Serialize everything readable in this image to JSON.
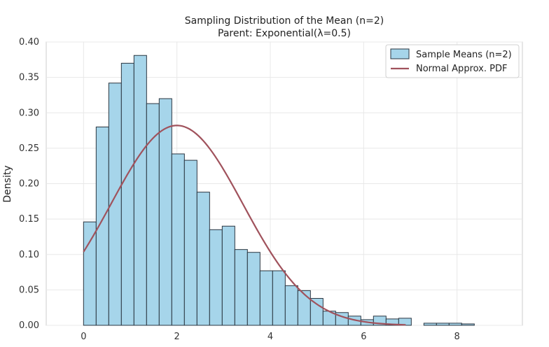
{
  "chart_data": {
    "type": "bar",
    "title": "Sampling Distribution of the Mean (n=2)",
    "subtitle": "Parent: Exponential(λ=0.5)",
    "xlabel": "",
    "ylabel": "Density",
    "xlim": [
      -0.8,
      9.4
    ],
    "ylim": [
      0,
      0.4
    ],
    "xticks": [
      0,
      2,
      4,
      6,
      8
    ],
    "yticks": [
      0.0,
      0.05,
      0.1,
      0.15,
      0.2,
      0.25,
      0.3,
      0.35,
      0.4
    ],
    "grid": true,
    "legend_position": "top-right",
    "series": [
      {
        "name": "Sample Means (n=2)",
        "kind": "histogram",
        "color": "#a6d5ea",
        "edge_color": "#2a3540",
        "bin_edges": [
          0.0,
          0.27,
          0.54,
          0.81,
          1.08,
          1.35,
          1.62,
          1.89,
          2.16,
          2.43,
          2.7,
          2.97,
          3.24,
          3.51,
          3.78,
          4.05,
          4.32,
          4.59,
          4.86,
          5.13,
          5.4,
          5.67,
          5.94,
          6.21,
          6.48,
          6.75,
          7.02,
          7.29,
          7.56,
          7.83,
          8.1,
          8.37
        ],
        "values": [
          0.146,
          0.28,
          0.342,
          0.37,
          0.381,
          0.313,
          0.32,
          0.242,
          0.233,
          0.188,
          0.135,
          0.14,
          0.107,
          0.103,
          0.077,
          0.077,
          0.056,
          0.049,
          0.038,
          0.02,
          0.018,
          0.013,
          0.008,
          0.013,
          0.009,
          0.01,
          0.0,
          0.003,
          0.003,
          0.003,
          0.002
        ]
      },
      {
        "name": "Normal Approx. PDF",
        "kind": "line",
        "color": "#a0525c",
        "mean": 2.0,
        "std": 1.414,
        "x_range": [
          0,
          6.9
        ]
      }
    ]
  }
}
